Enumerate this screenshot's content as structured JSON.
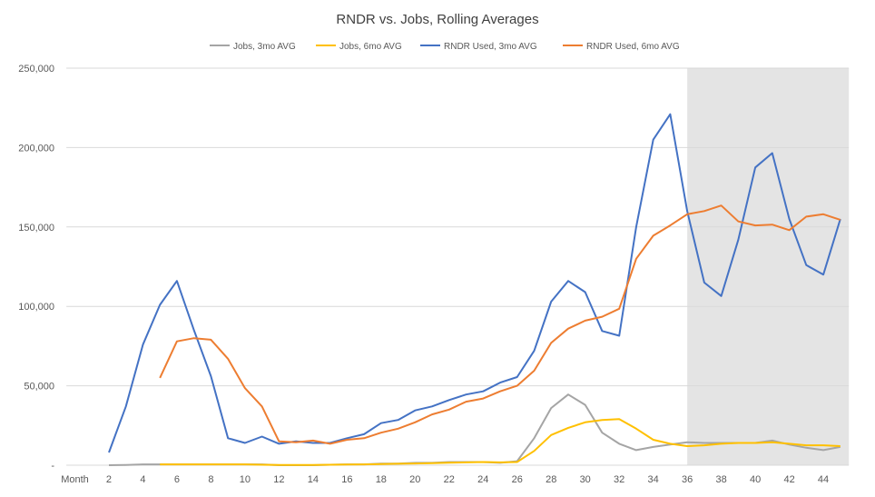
{
  "chart_data": {
    "type": "line",
    "title": "RNDR vs. Jobs, Rolling Averages",
    "xlabel": "Month",
    "ylabel": "",
    "ylim": [
      0,
      250000
    ],
    "yticks": [
      0,
      50000,
      100000,
      150000,
      200000,
      250000
    ],
    "ytick_labels": [
      "-",
      "50,000",
      "100,000",
      "150,000",
      "200,000",
      "250,000"
    ],
    "xtick_labels": [
      "Month",
      "2",
      "4",
      "6",
      "8",
      "10",
      "12",
      "14",
      "16",
      "18",
      "20",
      "22",
      "24",
      "26",
      "28",
      "30",
      "32",
      "34",
      "36",
      "38",
      "40",
      "42",
      "44"
    ],
    "grid": true,
    "legend_position": "top",
    "shaded_region": {
      "from_month": 36,
      "to_month": 45,
      "color": "#E4E4E4"
    },
    "x": [
      2,
      3,
      4,
      5,
      6,
      7,
      8,
      9,
      10,
      11,
      12,
      13,
      14,
      15,
      16,
      17,
      18,
      19,
      20,
      21,
      22,
      23,
      24,
      25,
      26,
      27,
      28,
      29,
      30,
      31,
      32,
      33,
      34,
      35,
      36,
      37,
      38,
      39,
      40,
      41,
      42,
      43,
      44,
      45
    ],
    "series": [
      {
        "name": "Jobs, 3mo AVG",
        "color": "#A5A5A5",
        "values": [
          0,
          200,
          500,
          500,
          500,
          500,
          500,
          500,
          500,
          500,
          0,
          0,
          0,
          300,
          500,
          500,
          1000,
          1000,
          1500,
          1500,
          2000,
          2000,
          2000,
          1500,
          2500,
          17000,
          36000,
          44500,
          38000,
          20500,
          13500,
          9500,
          11500,
          13000,
          14500,
          14000,
          14000,
          14000,
          14000,
          15500,
          13000,
          11000,
          9500,
          11500
        ]
      },
      {
        "name": "Jobs, 6mo AVG",
        "color": "#FFC000",
        "values": [
          null,
          null,
          null,
          500,
          500,
          500,
          500,
          500,
          500,
          300,
          200,
          100,
          100,
          300,
          400,
          500,
          700,
          900,
          1100,
          1300,
          1600,
          1800,
          2000,
          1800,
          2000,
          9000,
          19000,
          23500,
          27000,
          28500,
          29000,
          23000,
          16000,
          13500,
          12000,
          12500,
          13500,
          14000,
          14000,
          14500,
          13500,
          12500,
          12500,
          12000
        ]
      },
      {
        "name": "RNDR Used, 3mo AVG",
        "color": "#4472C4",
        "values": [
          8000,
          37000,
          76000,
          101000,
          116000,
          85000,
          56000,
          17000,
          14000,
          18000,
          13500,
          15000,
          14000,
          14000,
          17000,
          19500,
          26500,
          28500,
          34500,
          37000,
          41000,
          44500,
          46500,
          52000,
          55500,
          72000,
          103000,
          116000,
          109000,
          84500,
          81500,
          150000,
          205000,
          221000,
          160000,
          115000,
          106500,
          142000,
          187500,
          196500,
          155000,
          126000,
          120000,
          155000
        ]
      },
      {
        "name": "RNDR Used, 6mo AVG",
        "color": "#ED7D31",
        "values": [
          null,
          null,
          null,
          55000,
          78000,
          80000,
          79000,
          67000,
          48500,
          37000,
          15000,
          14500,
          15500,
          13500,
          16000,
          17000,
          20500,
          23000,
          27000,
          32000,
          35000,
          40000,
          42000,
          46500,
          50000,
          59500,
          77000,
          86000,
          91000,
          93500,
          98500,
          130000,
          144500,
          151000,
          158000,
          160000,
          163500,
          153500,
          151000,
          151500,
          148000,
          156500,
          158000,
          154500
        ]
      }
    ]
  }
}
